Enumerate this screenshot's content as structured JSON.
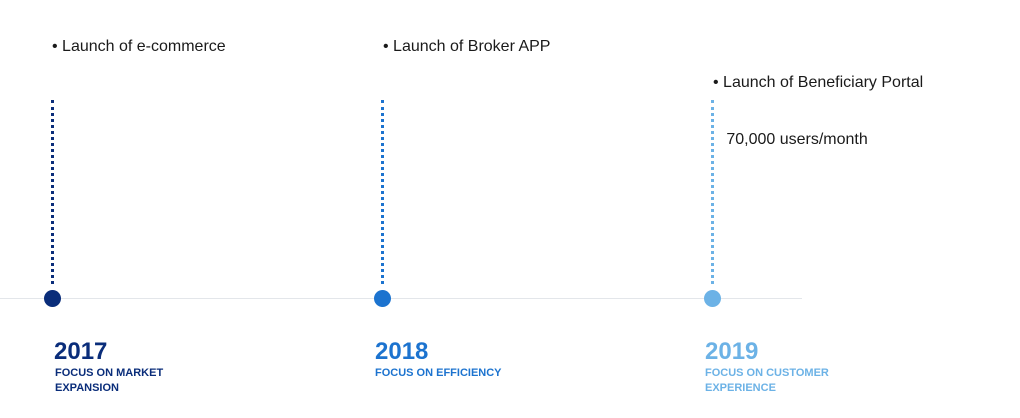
{
  "milestones": [
    {
      "year": "2017",
      "focus": "FOCUS ON MARKET EXPANSION",
      "bullets": [
        "•   Launch of e-commerce"
      ],
      "color": "#0a2d7a"
    },
    {
      "year": "2018",
      "focus": "FOCUS ON EFFICIENCY",
      "bullets": [
        "• Launch of Broker APP"
      ],
      "color": "#1c73cf"
    },
    {
      "year": "2019",
      "focus": "FOCUS ON CUSTOMER EXPERIENCE",
      "bullets": [
        "• Launch of Beneficiary Portal",
        "   70,000 users/month"
      ],
      "color": "#6cb2e6"
    }
  ]
}
